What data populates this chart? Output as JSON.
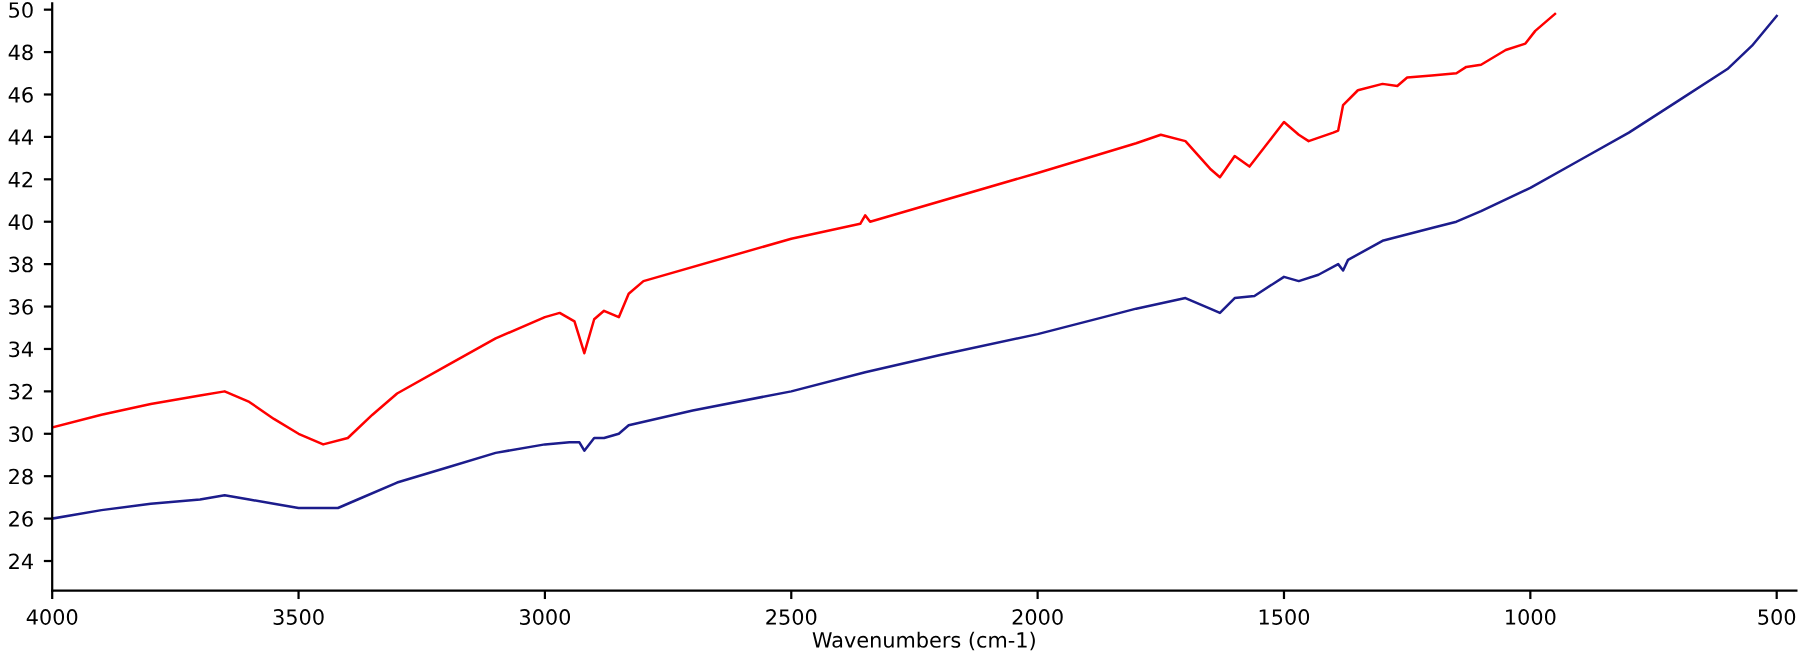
{
  "chart_data": {
    "type": "line",
    "xlabel": "Wavenumbers (cm-1)",
    "xlim": [
      4000,
      460
    ],
    "ylim": [
      22.6,
      50.3
    ],
    "xticks": [
      4000,
      3500,
      3000,
      2500,
      2000,
      1500,
      1000,
      500
    ],
    "yticks": [
      24,
      26,
      28,
      30,
      32,
      34,
      36,
      38,
      40,
      42,
      44,
      46,
      48,
      50
    ],
    "grid": false,
    "legend": false,
    "marker": "none",
    "line_style": "solid",
    "series": [
      {
        "color": "#ff0000",
        "x": [
          4000,
          3900,
          3800,
          3700,
          3650,
          3600,
          3550,
          3500,
          3450,
          3400,
          3350,
          3300,
          3200,
          3100,
          3000,
          2970,
          2940,
          2920,
          2900,
          2880,
          2850,
          2830,
          2800,
          2500,
          2360,
          2350,
          2340,
          2000,
          1800,
          1750,
          1700,
          1650,
          1630,
          1600,
          1570,
          1520,
          1500,
          1470,
          1450,
          1400,
          1390,
          1380,
          1350,
          1300,
          1270,
          1250,
          1200,
          1150,
          1130,
          1100,
          1050,
          1010,
          990,
          950
        ],
        "values": [
          30.3,
          30.9,
          31.4,
          31.8,
          32.0,
          31.5,
          30.7,
          30.0,
          29.5,
          29.8,
          30.9,
          31.9,
          33.2,
          34.5,
          35.5,
          35.7,
          35.3,
          33.8,
          35.4,
          35.8,
          35.5,
          36.6,
          37.2,
          39.2,
          39.9,
          40.3,
          40.0,
          42.3,
          43.7,
          44.1,
          43.8,
          42.5,
          42.1,
          43.1,
          42.6,
          44.1,
          44.7,
          44.1,
          43.8,
          44.2,
          44.3,
          45.5,
          46.2,
          46.5,
          46.4,
          46.8,
          46.9,
          47.0,
          47.3,
          47.4,
          48.1,
          48.4,
          49.0,
          49.8
        ]
      },
      {
        "color": "#1c1c8c",
        "x": [
          4000,
          3900,
          3800,
          3700,
          3650,
          3600,
          3550,
          3500,
          3420,
          3380,
          3300,
          3200,
          3100,
          3000,
          2950,
          2930,
          2920,
          2900,
          2880,
          2850,
          2830,
          2700,
          2500,
          2350,
          2200,
          2000,
          1866,
          1800,
          1700,
          1650,
          1630,
          1600,
          1560,
          1500,
          1470,
          1430,
          1390,
          1380,
          1370,
          1300,
          1200,
          1150,
          1100,
          1000,
          900,
          800,
          700,
          600,
          550,
          500
        ],
        "values": [
          26.0,
          26.4,
          26.7,
          26.9,
          27.1,
          26.9,
          26.7,
          26.5,
          26.5,
          26.9,
          27.7,
          28.4,
          29.1,
          29.5,
          29.6,
          29.6,
          29.2,
          29.8,
          29.8,
          30.0,
          30.4,
          31.1,
          32.0,
          32.9,
          33.7,
          34.7,
          35.5,
          35.9,
          36.4,
          35.9,
          35.7,
          36.4,
          36.5,
          37.4,
          37.2,
          37.5,
          38.0,
          37.7,
          38.2,
          39.1,
          39.7,
          40.0,
          40.5,
          41.6,
          42.9,
          44.2,
          45.7,
          47.2,
          48.3,
          49.7
        ]
      }
    ]
  }
}
